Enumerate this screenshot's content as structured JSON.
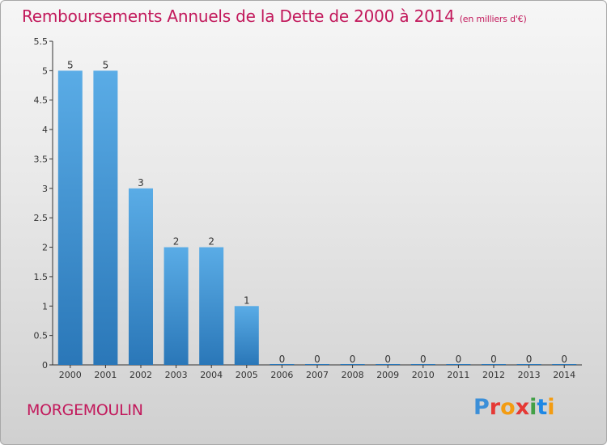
{
  "header": {
    "title": "Remboursements Annuels de la Dette de 2000 à 2014",
    "subtitle": "(en milliers d'€)"
  },
  "footer": {
    "commune": "MORGEMOULIN",
    "logo_text": "Proxiti",
    "logo_colors": [
      "#3b8fd8",
      "#e53935",
      "#f39c12",
      "#e53935",
      "#43a047",
      "#1e88e5",
      "#f39c12"
    ]
  },
  "colors": {
    "title": "#c2185b",
    "bar_light": "#5aace6",
    "bar_dark": "#2a77b8",
    "axis": "#333333"
  },
  "chart_data": {
    "type": "bar",
    "title": "Remboursements Annuels de la Dette de 2000 à 2014",
    "subtitle": "(en milliers d'€)",
    "categories": [
      "2000",
      "2001",
      "2002",
      "2003",
      "2004",
      "2005",
      "2006",
      "2007",
      "2008",
      "2009",
      "2010",
      "2011",
      "2012",
      "2013",
      "2014"
    ],
    "values": [
      5,
      5,
      3,
      2,
      2,
      1,
      0,
      0,
      0,
      0,
      0,
      0,
      0,
      0,
      0
    ],
    "data_labels": [
      "5",
      "5",
      "3",
      "2",
      "2",
      "1",
      "0",
      "0",
      "0",
      "0",
      "0",
      "0",
      "0",
      "0",
      "0"
    ],
    "yticks": [
      "0",
      "0.5",
      "1",
      "1.5",
      "2",
      "2.5",
      "3",
      "3.5",
      "4",
      "4.5",
      "5",
      "5.5"
    ],
    "ylim": [
      0,
      5.5
    ],
    "grid": false,
    "legend": "none"
  }
}
